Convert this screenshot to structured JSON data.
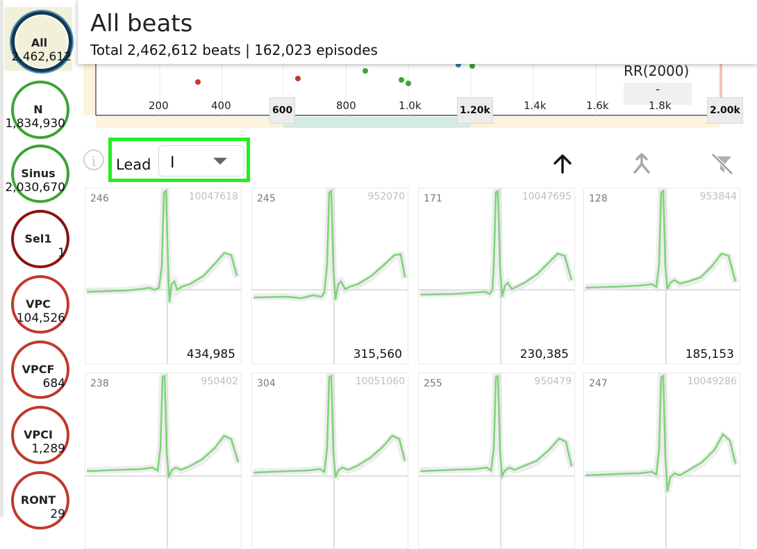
{
  "header": {
    "title": "All beats",
    "subtitle": "Total 2,462,612 beats | 162,023 episodes"
  },
  "sidebar": {
    "categories": [
      {
        "label": "All",
        "count": "2,462,612",
        "color": "#123a55"
      },
      {
        "label": "N",
        "count": "1,834,930",
        "color": "#3ca432"
      },
      {
        "label": "Sinus",
        "count": "2,030,670",
        "color": "#3ca432"
      },
      {
        "label": "Sel1",
        "count": "1",
        "color": "#8b1212"
      },
      {
        "label": "VPC",
        "count": "104,526",
        "color": "#c0392b"
      },
      {
        "label": "VPCF",
        "count": "684",
        "color": "#c0392b"
      },
      {
        "label": "VPCI",
        "count": "1,289",
        "color": "#c0392b"
      },
      {
        "label": "RONT",
        "count": "29",
        "color": "#c0392b"
      }
    ]
  },
  "rr_chart": {
    "ticks": [
      "200",
      "400",
      "600",
      "800",
      "1.0k",
      "1.20k",
      "1.4k",
      "1.6k",
      "1.8k",
      "2.00k"
    ],
    "rr_label": "RR(2000)",
    "rr_value": "-"
  },
  "toolbar": {
    "info_icon": "info-icon",
    "lead_label": "Lead",
    "lead_value": "I",
    "icons": [
      "arrow-up-icon",
      "merge-icon",
      "filter-off-icon"
    ]
  },
  "beats": [
    {
      "rr": "246",
      "id": "10047618",
      "count": "434,985"
    },
    {
      "rr": "245",
      "id": "952070",
      "count": "315,560"
    },
    {
      "rr": "171",
      "id": "10047695",
      "count": "230,385"
    },
    {
      "rr": "128",
      "id": "953844",
      "count": "185,153"
    },
    {
      "rr": "238",
      "id": "950402",
      "count": ""
    },
    {
      "rr": "304",
      "id": "10051060",
      "count": ""
    },
    {
      "rr": "255",
      "id": "950479",
      "count": ""
    },
    {
      "rr": "247",
      "id": "10049286",
      "count": ""
    }
  ],
  "colors": {
    "accent": "#22ee22",
    "trace": "#7fd47a",
    "normal": "#3ca432",
    "ventricular": "#c0392b"
  }
}
